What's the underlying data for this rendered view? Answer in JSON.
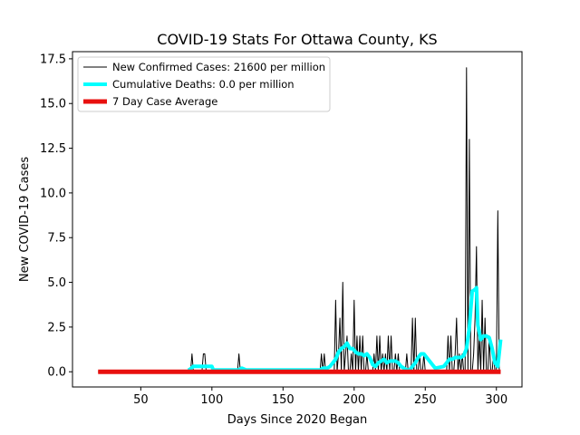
{
  "chart_data": {
    "type": "line",
    "title": "COVID-19 Stats For Ottawa County, KS",
    "xlabel": "Days Since 2020 Began",
    "ylabel": "New COVID-19 Cases",
    "xlim": [
      2,
      318
    ],
    "ylim": [
      -0.85,
      17.9
    ],
    "xticks": [
      50,
      100,
      150,
      200,
      250,
      300
    ],
    "yticks": [
      0.0,
      2.5,
      5.0,
      7.5,
      10.0,
      12.5,
      15.0,
      17.5
    ],
    "ytick_labels": [
      "0.0",
      "2.5",
      "5.0",
      "7.5",
      "10.0",
      "12.5",
      "15.0",
      "17.5"
    ],
    "legend_position": "top-left",
    "grid": false,
    "series": [
      {
        "name": "New Confirmed Cases: 21600 per million",
        "color": "#000000",
        "line_width": 1,
        "x": [
          20,
          85,
          86,
          87,
          93,
          94,
          95,
          96,
          118,
          119,
          120,
          176,
          177,
          178,
          179,
          180,
          181,
          184,
          186,
          187,
          188,
          189,
          190,
          191,
          192,
          193,
          194,
          195,
          196,
          197,
          198,
          199,
          200,
          201,
          202,
          203,
          204,
          205,
          206,
          207,
          208,
          209,
          210,
          211,
          212,
          213,
          214,
          215,
          216,
          217,
          218,
          219,
          220,
          221,
          222,
          223,
          224,
          225,
          226,
          227,
          228,
          229,
          230,
          231,
          232,
          233,
          234,
          235,
          236,
          237,
          238,
          239,
          240,
          241,
          242,
          243,
          244,
          245,
          246,
          247,
          248,
          249,
          250,
          251,
          252,
          253,
          254,
          255,
          256,
          257,
          258,
          259,
          260,
          261,
          262,
          263,
          264,
          265,
          266,
          267,
          268,
          269,
          270,
          271,
          272,
          273,
          274,
          275,
          276,
          277,
          278,
          279,
          280,
          281,
          282,
          283,
          284,
          285,
          286,
          287,
          288,
          289,
          290,
          291,
          292,
          293,
          294,
          295,
          296,
          297,
          298,
          299,
          300,
          301,
          302,
          303
        ],
        "y": [
          0,
          0,
          1,
          0,
          0,
          1,
          1,
          0,
          0,
          1,
          0,
          0,
          1,
          0,
          1,
          0,
          0,
          0,
          0,
          4,
          0,
          1,
          3,
          0,
          5,
          0,
          1,
          2,
          0,
          0,
          1,
          0,
          4,
          0,
          2,
          0,
          2,
          0,
          2,
          0,
          0,
          1,
          0,
          0,
          0,
          0,
          1,
          0,
          2,
          0,
          2,
          0,
          1,
          0,
          1,
          0,
          2,
          0,
          2,
          0,
          0,
          1,
          0,
          1,
          0,
          0,
          0,
          0,
          0,
          1,
          0,
          0,
          0,
          3,
          0,
          3,
          0,
          0,
          1,
          0,
          0,
          1,
          0,
          0,
          0,
          0,
          0,
          0,
          0,
          0,
          0,
          0,
          0,
          0,
          0,
          0,
          0,
          0,
          2,
          0,
          2,
          0,
          0,
          1,
          3,
          0,
          1,
          0,
          1,
          0,
          0,
          17,
          0,
          13,
          0,
          0,
          1,
          3,
          7,
          0,
          2,
          0,
          4,
          0,
          3,
          0,
          0,
          2,
          0,
          0,
          1,
          0,
          0,
          9,
          0,
          0
        ]
      },
      {
        "name": "Cumulative Deaths: 0.0 per million",
        "color": "#00ffff",
        "line_width": 4,
        "x": [
          83,
          84,
          87,
          89,
          91,
          92,
          94,
          97,
          100,
          101,
          119,
          121,
          124,
          176,
          178,
          181,
          183,
          185,
          187,
          189,
          191,
          193,
          195,
          197,
          199,
          201,
          203,
          205,
          207,
          209,
          211,
          213,
          215,
          217,
          219,
          221,
          223,
          225,
          227,
          229,
          231,
          233,
          235,
          237,
          239,
          241,
          243,
          245,
          247,
          249,
          251,
          253,
          255,
          257,
          263,
          265,
          267,
          269,
          271,
          273,
          275,
          277,
          279,
          281,
          283,
          285,
          286,
          287,
          289,
          291,
          293,
          295,
          297,
          299,
          301,
          303
        ],
        "y": [
          0.1,
          0.1,
          0.3,
          0.3,
          0.3,
          0.3,
          0.3,
          0.3,
          0.3,
          0.1,
          0.1,
          0.2,
          0.1,
          0.1,
          0.2,
          0.2,
          0.3,
          0.5,
          0.7,
          1.1,
          1.3,
          1.4,
          1.6,
          1.3,
          1.3,
          1.1,
          1.0,
          1.0,
          0.9,
          1.0,
          0.8,
          0.4,
          0.3,
          0.5,
          0.6,
          0.7,
          0.5,
          0.6,
          0.6,
          0.6,
          0.5,
          0.3,
          0.2,
          0.1,
          0.1,
          0.3,
          0.5,
          0.8,
          1.0,
          1.0,
          0.8,
          0.6,
          0.4,
          0.2,
          0.3,
          0.5,
          0.7,
          0.7,
          0.8,
          0.8,
          0.8,
          0.9,
          1.3,
          2.5,
          4.5,
          4.6,
          4.7,
          2.6,
          1.8,
          2.0,
          2.0,
          1.9,
          1.3,
          0.5,
          0.3,
          1.8
        ]
      },
      {
        "name": "7 Day Case Average",
        "color": "#e8100f",
        "line_width": 5,
        "x": [
          20,
          303
        ],
        "y": [
          0,
          0
        ]
      }
    ]
  }
}
